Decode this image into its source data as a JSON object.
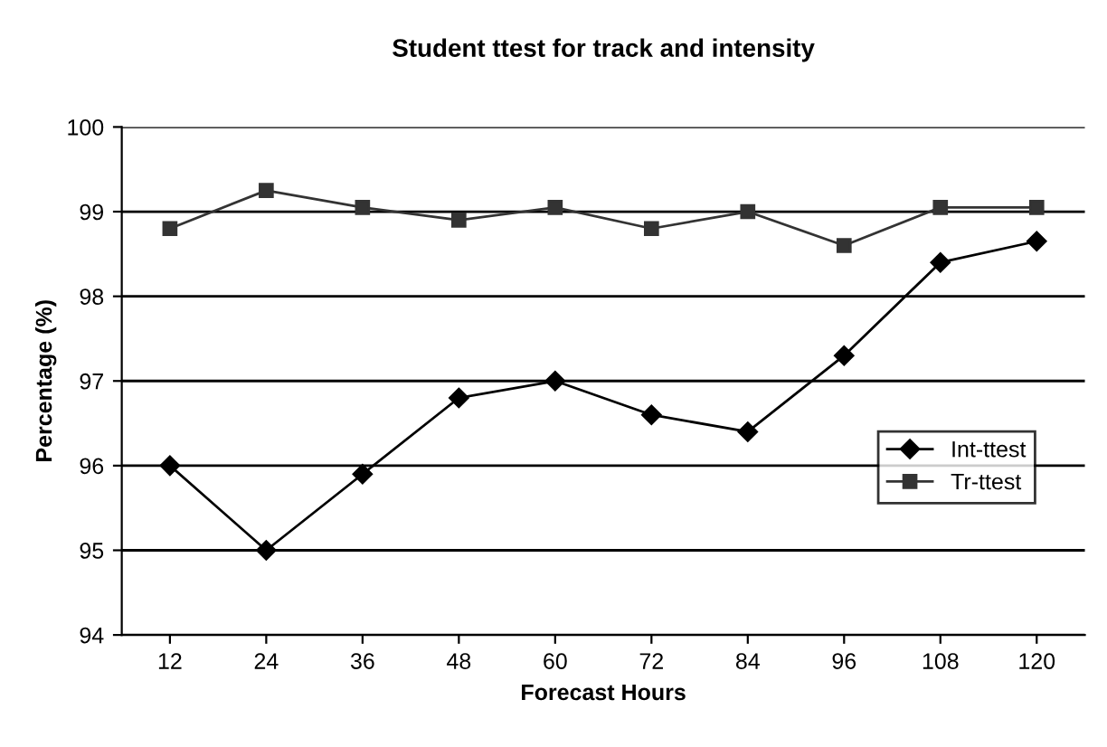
{
  "chart_data": {
    "type": "line",
    "title": "Student ttest for track and intensity",
    "xlabel": "Forecast Hours",
    "ylabel": "Percentage (%)",
    "categories": [
      "12",
      "24",
      "36",
      "48",
      "60",
      "72",
      "84",
      "96",
      "108",
      "120"
    ],
    "series": [
      {
        "name": "Int-ttest",
        "color": "#000000",
        "marker": "diamond",
        "values": [
          96.0,
          95.0,
          95.9,
          96.8,
          97.0,
          96.6,
          96.4,
          97.3,
          98.4,
          98.65
        ]
      },
      {
        "name": "Tr-ttest",
        "color": "#333333",
        "marker": "square",
        "values": [
          98.8,
          99.25,
          99.05,
          98.9,
          99.05,
          98.8,
          99.0,
          98.6,
          99.05,
          99.05
        ]
      }
    ],
    "ylim": [
      94,
      100
    ],
    "yticks": [
      94,
      95,
      96,
      97,
      98,
      99,
      100
    ],
    "grid": "y",
    "legend": "right",
    "line_style": "solid"
  }
}
